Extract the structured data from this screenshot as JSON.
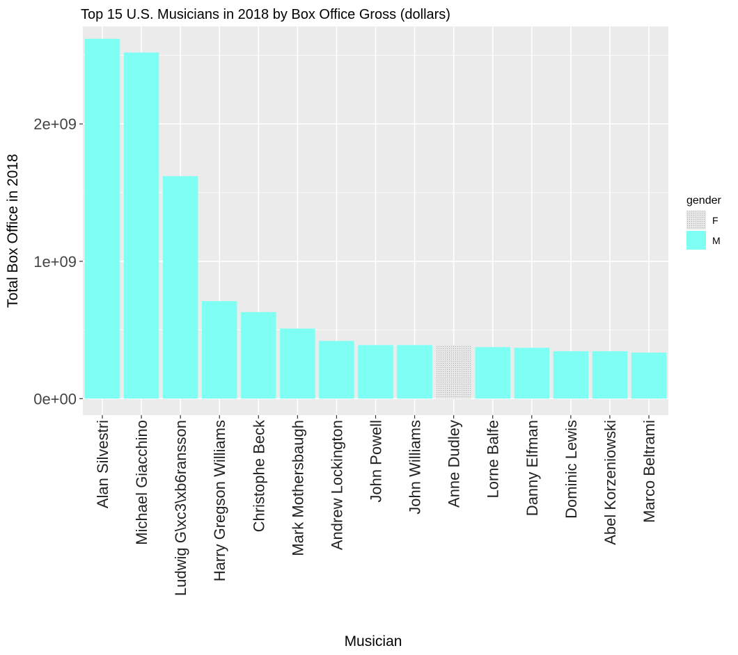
{
  "chart_data": {
    "type": "bar",
    "title": "Top 15 U.S. Musicians in 2018 by Box Office Gross (dollars)",
    "xlabel": "Musician",
    "ylabel": "Total Box Office in 2018",
    "ylim": [
      -120000000,
      2710000000
    ],
    "yticks": [
      0,
      1000000000,
      2000000000
    ],
    "ytick_labels": [
      "0e+00",
      "1e+09",
      "2e+09"
    ],
    "grid": true,
    "legend_position": "right",
    "legend": {
      "title": "gender",
      "entries": [
        {
          "label": "F",
          "color": "#d9d9d9",
          "pattern": "dotted"
        },
        {
          "label": "M",
          "color": "#7ffff4"
        }
      ]
    },
    "categories": [
      "Alan Silvestri",
      "Michael Giacchino",
      "Ludwig G\\xc3\\xb6ransson",
      "Harry Gregson Williams",
      "Christophe Beck",
      "Mark Mothersbaugh",
      "Andrew Lockington",
      "John Powell",
      "John Williams",
      "Anne Dudley",
      "Lorne Balfe",
      "Danny Elfman",
      "Dominic Lewis",
      "Abel Korzeniowski",
      "Marco Beltrami"
    ],
    "gender": [
      "M",
      "M",
      "M",
      "M",
      "M",
      "M",
      "M",
      "M",
      "M",
      "F",
      "M",
      "M",
      "M",
      "M",
      "M"
    ],
    "values": [
      2620000000,
      2520000000,
      1620000000,
      710000000,
      630000000,
      510000000,
      420000000,
      390000000,
      390000000,
      390000000,
      375000000,
      370000000,
      345000000,
      345000000,
      335000000
    ]
  },
  "colors": {
    "panel_bg": "#ebebeb",
    "grid": "#ffffff",
    "male": "#7ffff4",
    "female": "#d9d9d9"
  }
}
